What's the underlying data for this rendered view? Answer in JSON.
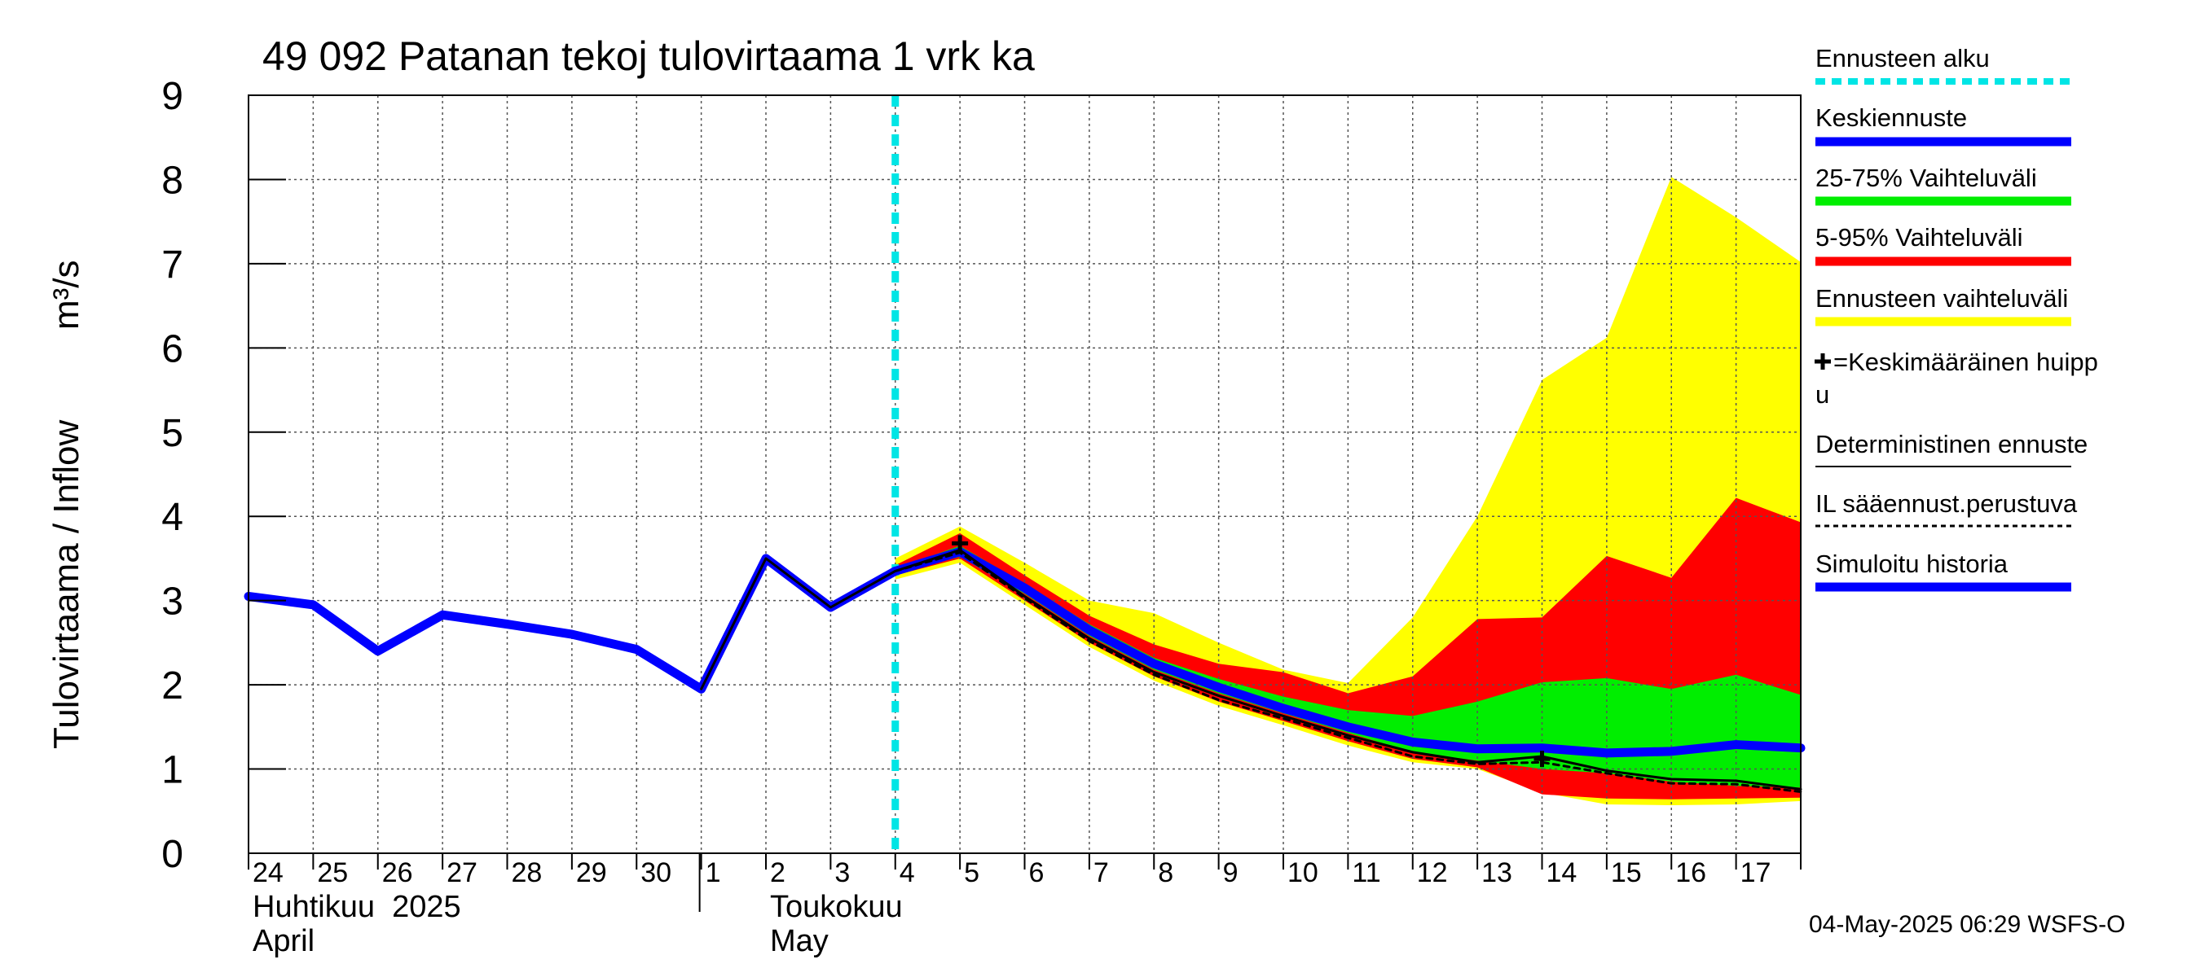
{
  "chart_data": {
    "type": "line",
    "title": "49 092 Patanan tekoj tulovirtaama 1 vrk ka",
    "ylabel_fi": "Tulovirtaama / Inflow",
    "ylabel_unit": "m³/s",
    "ylim": [
      0,
      9
    ],
    "yticks": [
      "0",
      "1",
      "2",
      "3",
      "4",
      "5",
      "6",
      "7",
      "8",
      "9"
    ],
    "xlim": [
      0,
      24
    ],
    "grid": true,
    "x_tick_labels": [
      "24",
      "25",
      "26",
      "27",
      "28",
      "29",
      "30",
      "1",
      "2",
      "3",
      "4",
      "5",
      "6",
      "7",
      "8",
      "9",
      "10",
      "11",
      "12",
      "13",
      "14",
      "15",
      "16",
      "17"
    ],
    "month_labels": [
      {
        "line1": "Huhtikuu  2025",
        "line2": "April",
        "x": 0
      },
      {
        "line1": "Toukokuu",
        "line2": "May",
        "x": 8
      }
    ],
    "month_separator_x": 7,
    "forecast_start_x": 10,
    "timestamp": "04-May-2025 06:29 WSFS-O",
    "series": [
      {
        "name": "Simuloitu historia",
        "color": "#0000ff",
        "x": [
          0,
          1,
          2,
          3,
          4,
          5,
          6,
          7,
          8,
          9,
          10
        ],
        "y": [
          3.05,
          2.95,
          2.4,
          2.83,
          2.72,
          2.6,
          2.42,
          1.95,
          3.5,
          2.92,
          3.35
        ]
      },
      {
        "name": "Keskiennuste",
        "color": "#0000ff",
        "x": [
          10,
          11,
          12,
          13,
          14,
          15,
          16,
          17,
          18,
          19,
          20,
          21,
          22,
          23,
          24
        ],
        "y": [
          3.35,
          3.58,
          3.15,
          2.65,
          2.25,
          1.97,
          1.72,
          1.5,
          1.32,
          1.24,
          1.25,
          1.19,
          1.21,
          1.29,
          1.25
        ]
      },
      {
        "name": "Deterministinen ennuste",
        "color": "#000000",
        "x": [
          7,
          8,
          9,
          10,
          11,
          12,
          13,
          14,
          15,
          16,
          17,
          18,
          19,
          20,
          21,
          22,
          23,
          24
        ],
        "y": [
          1.95,
          3.5,
          2.92,
          3.35,
          3.6,
          3.05,
          2.55,
          2.15,
          1.87,
          1.63,
          1.4,
          1.2,
          1.08,
          1.15,
          0.98,
          0.88,
          0.86,
          0.76
        ]
      },
      {
        "name": "IL sääennust.perustuva",
        "color": "#000000",
        "dashed": true,
        "x": [
          10,
          11,
          12,
          13,
          14,
          15,
          16,
          17,
          18,
          19,
          20,
          21,
          22,
          23,
          24
        ],
        "y": [
          3.35,
          3.57,
          3.03,
          2.52,
          2.12,
          1.82,
          1.6,
          1.37,
          1.15,
          1.06,
          1.08,
          0.95,
          0.83,
          0.82,
          0.73
        ]
      }
    ],
    "bands": [
      {
        "name": "Ennusteen vaihteluväli",
        "color": "#ffff00",
        "x": [
          10,
          11,
          12,
          13,
          14,
          15,
          16,
          17,
          18,
          19,
          20,
          21,
          22,
          23,
          24
        ],
        "upper": [
          3.5,
          3.88,
          3.45,
          3.0,
          2.85,
          2.5,
          2.18,
          2.02,
          2.8,
          4.0,
          5.62,
          6.12,
          8.03,
          7.55,
          7.02
        ],
        "lower": [
          3.25,
          3.45,
          2.95,
          2.45,
          2.05,
          1.75,
          1.52,
          1.28,
          1.08,
          1.0,
          0.72,
          0.58,
          0.57,
          0.58,
          0.62
        ]
      },
      {
        "name": "5-95% Vaihteluväli",
        "color": "#ff0000",
        "x": [
          10,
          11,
          12,
          13,
          14,
          15,
          16,
          17,
          18,
          19,
          20,
          21,
          22,
          23,
          24
        ],
        "upper": [
          3.42,
          3.8,
          3.3,
          2.82,
          2.48,
          2.25,
          2.15,
          1.9,
          2.1,
          2.78,
          2.8,
          3.53,
          3.27,
          4.22,
          3.93
        ],
        "lower": [
          3.3,
          3.5,
          3.0,
          2.5,
          2.1,
          1.8,
          1.57,
          1.33,
          1.12,
          1.02,
          0.7,
          0.65,
          0.64,
          0.65,
          0.66
        ]
      },
      {
        "name": "25-75% Vaihteluväli",
        "color": "#00ee00",
        "x": [
          10,
          11,
          12,
          13,
          14,
          15,
          16,
          17,
          18,
          19,
          20,
          21,
          22,
          23,
          24
        ],
        "upper": [
          3.38,
          3.65,
          3.2,
          2.72,
          2.32,
          2.07,
          1.86,
          1.7,
          1.63,
          1.8,
          2.03,
          2.08,
          1.95,
          2.12,
          1.88
        ],
        "lower": [
          3.32,
          3.52,
          3.08,
          2.58,
          2.18,
          1.9,
          1.66,
          1.43,
          1.2,
          1.1,
          1.0,
          0.95,
          0.85,
          0.8,
          0.78
        ]
      }
    ],
    "peaks": {
      "name": "Keskimääräinen huippu",
      "x": [
        11,
        20
      ],
      "y": [
        3.68,
        1.12
      ]
    },
    "legend": [
      {
        "label": "Ennusteen alku",
        "color": "#00e5e5",
        "style": "dotted"
      },
      {
        "label": "Keskiennuste",
        "color": "#0000ff",
        "style": "thick"
      },
      {
        "label": "25-75% Vaihteluväli",
        "color": "#00ee00",
        "style": "thick"
      },
      {
        "label": "5-95% Vaihteluväli",
        "color": "#ff0000",
        "style": "thick"
      },
      {
        "label": "Ennusteen vaihteluväli",
        "color": "#ffff00",
        "style": "thick"
      },
      {
        "label": "=Keskimääräinen huipp",
        "label2": "u",
        "color": "#000000",
        "style": "plus"
      },
      {
        "label": "Deterministinen ennuste",
        "color": "#000000",
        "style": "thin"
      },
      {
        "label": "IL sääennust.perustuva",
        "color": "#000000",
        "style": "dashed"
      },
      {
        "label": "Simuloitu historia",
        "color": "#0000ff",
        "style": "thick"
      }
    ]
  }
}
